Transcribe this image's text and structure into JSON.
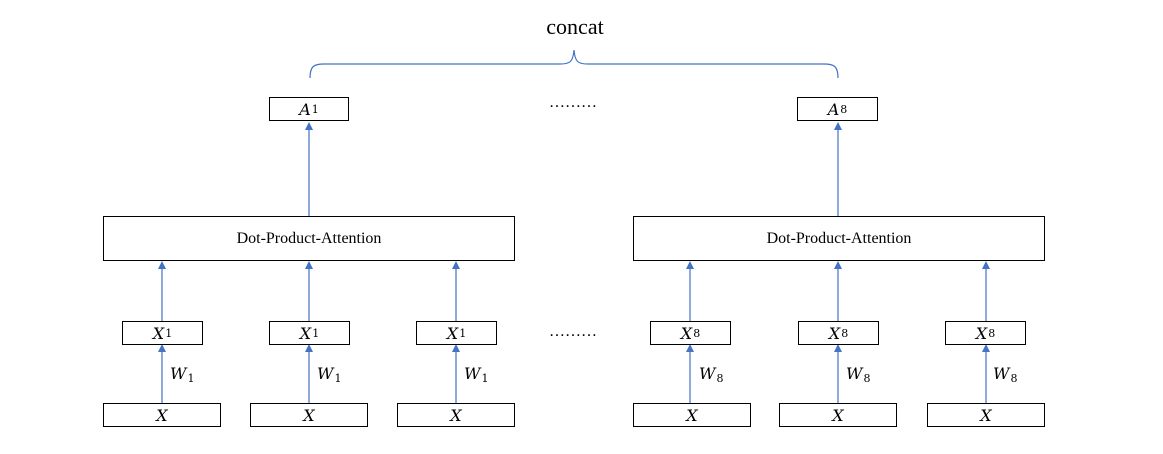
{
  "title": "concat",
  "ellipsis_top": "………",
  "ellipsis_mid": "………",
  "heads": [
    {
      "output": {
        "base": "A",
        "sub": "1"
      },
      "attention_label": "Dot-Product-Attention",
      "projections": [
        {
          "x": {
            "base": "X",
            "sub": "1"
          },
          "w": {
            "base": "W",
            "sub": "1"
          },
          "input": "X"
        },
        {
          "x": {
            "base": "X",
            "sub": "1"
          },
          "w": {
            "base": "W",
            "sub": "1"
          },
          "input": "X"
        },
        {
          "x": {
            "base": "X",
            "sub": "1"
          },
          "w": {
            "base": "W",
            "sub": "1"
          },
          "input": "X"
        }
      ]
    },
    {
      "output": {
        "base": "A",
        "sub": "8"
      },
      "attention_label": "Dot-Product-Attention",
      "projections": [
        {
          "x": {
            "base": "X",
            "sub": "8"
          },
          "w": {
            "base": "W",
            "sub": "8"
          },
          "input": "X"
        },
        {
          "x": {
            "base": "X",
            "sub": "8"
          },
          "w": {
            "base": "W",
            "sub": "8"
          },
          "input": "X"
        },
        {
          "x": {
            "base": "X",
            "sub": "8"
          },
          "w": {
            "base": "W",
            "sub": "8"
          },
          "input": "X"
        }
      ]
    }
  ],
  "colors": {
    "arrow": "#4472C4",
    "brace": "#4472C4",
    "box_border": "#000000"
  }
}
